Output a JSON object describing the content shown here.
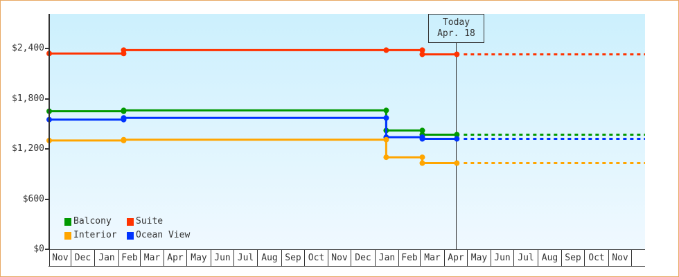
{
  "chart_data": {
    "type": "line",
    "title": "",
    "xlabel": "",
    "ylabel": "",
    "ylim": [
      0,
      2800
    ],
    "yticks": [
      0,
      600,
      1200,
      1800,
      2400
    ],
    "ytick_labels": [
      "$0",
      "$600",
      "$1,200",
      "$1,800",
      "$2,400"
    ],
    "x_months": [
      "Nov",
      "Dec",
      "Jan",
      "Feb",
      "Mar",
      "Apr",
      "May",
      "Jun",
      "Jul",
      "Aug",
      "Sep",
      "Oct",
      "Nov",
      "Dec",
      "Jan",
      "Feb",
      "Mar",
      "Apr",
      "May",
      "Jun",
      "Jul",
      "Aug",
      "Sep",
      "Oct",
      "Nov"
    ],
    "x_month_start_days": [
      2,
      30,
      61,
      92,
      120,
      151,
      181,
      212,
      242,
      273,
      304,
      334,
      365,
      395,
      426,
      457,
      485,
      516,
      546,
      577,
      607,
      638,
      669,
      699,
      730,
      760
    ],
    "x_range_days": [
      2,
      778
    ],
    "today": {
      "label": "Today",
      "date": "Apr. 18",
      "day": 533
    },
    "step_dates": {
      "2": "Nov 3",
      "99": "Feb 8",
      "441": "Jan 16",
      "488": "Mar 4",
      "533": "Apr 18"
    },
    "legend_position": "lower-left inside plot",
    "grid": false,
    "series": [
      {
        "name": "Suite",
        "color": "#ff3300",
        "points": [
          [
            2,
            2340
          ],
          [
            99,
            2340
          ],
          [
            99,
            2380
          ],
          [
            441,
            2380
          ],
          [
            488,
            2380
          ],
          [
            488,
            2330
          ],
          [
            533,
            2330
          ]
        ],
        "projection": 2330
      },
      {
        "name": "Balcony",
        "color": "#009900",
        "points": [
          [
            2,
            1650
          ],
          [
            99,
            1650
          ],
          [
            99,
            1660
          ],
          [
            441,
            1660
          ],
          [
            441,
            1420
          ],
          [
            488,
            1420
          ],
          [
            488,
            1370
          ],
          [
            533,
            1370
          ]
        ],
        "projection": 1370
      },
      {
        "name": "Ocean View",
        "color": "#0033ff",
        "points": [
          [
            2,
            1550
          ],
          [
            99,
            1550
          ],
          [
            99,
            1570
          ],
          [
            441,
            1570
          ],
          [
            441,
            1340
          ],
          [
            488,
            1340
          ],
          [
            488,
            1320
          ],
          [
            533,
            1320
          ]
        ],
        "projection": 1320
      },
      {
        "name": "Interior",
        "color": "#ffa500",
        "points": [
          [
            2,
            1300
          ],
          [
            99,
            1300
          ],
          [
            99,
            1310
          ],
          [
            441,
            1310
          ],
          [
            441,
            1100
          ],
          [
            488,
            1100
          ],
          [
            488,
            1030
          ],
          [
            533,
            1030
          ]
        ],
        "projection": 1030
      }
    ]
  },
  "legend": {
    "items": [
      {
        "label": "Balcony",
        "color": "#009900"
      },
      {
        "label": "Suite",
        "color": "#ff3300"
      },
      {
        "label": "Interior",
        "color": "#ffa500"
      },
      {
        "label": "Ocean View",
        "color": "#0033ff"
      }
    ]
  },
  "today_marker": {
    "line1": "Today",
    "line2": "Apr. 18"
  },
  "colors": {
    "frame_border": "#e8a862",
    "axis": "#333333",
    "bg_top": "#ccf0fd",
    "bg_bottom": "#f0f9ff"
  }
}
